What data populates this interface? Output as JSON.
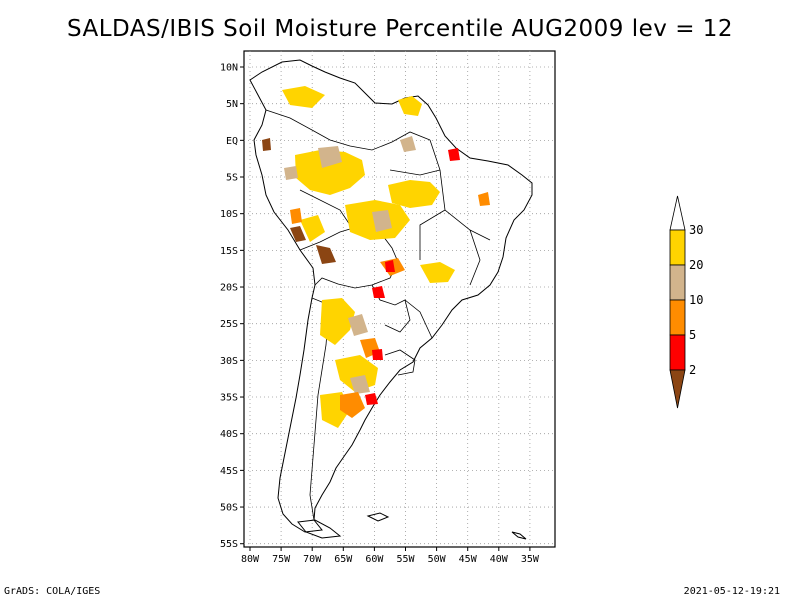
{
  "title": "SALDAS/IBIS Soil Moisture Percentile AUG2009 lev = 12",
  "footer_left": "GrADS: COLA/IGES",
  "footer_right": "2021-05-12-19:21",
  "lat_ticks": [
    "10N",
    "5N",
    "EQ",
    "5S",
    "10S",
    "15S",
    "20S",
    "25S",
    "30S",
    "35S",
    "40S",
    "45S",
    "50S",
    "55S"
  ],
  "lon_ticks": [
    "80W",
    "75W",
    "70W",
    "65W",
    "60W",
    "55W",
    "50W",
    "45W",
    "40W",
    "35W"
  ],
  "map": {
    "lon_range": [
      -81,
      -31
    ],
    "lat_range": [
      -56,
      12
    ],
    "grid": "dotted"
  },
  "colorbar": {
    "labels": [
      "30",
      "20",
      "10",
      "5",
      "2"
    ],
    "colors": [
      "#ffffff",
      "#ffd400",
      "#d2b48c",
      "#ff8c00",
      "#ff0000",
      "#8b4513"
    ]
  }
}
